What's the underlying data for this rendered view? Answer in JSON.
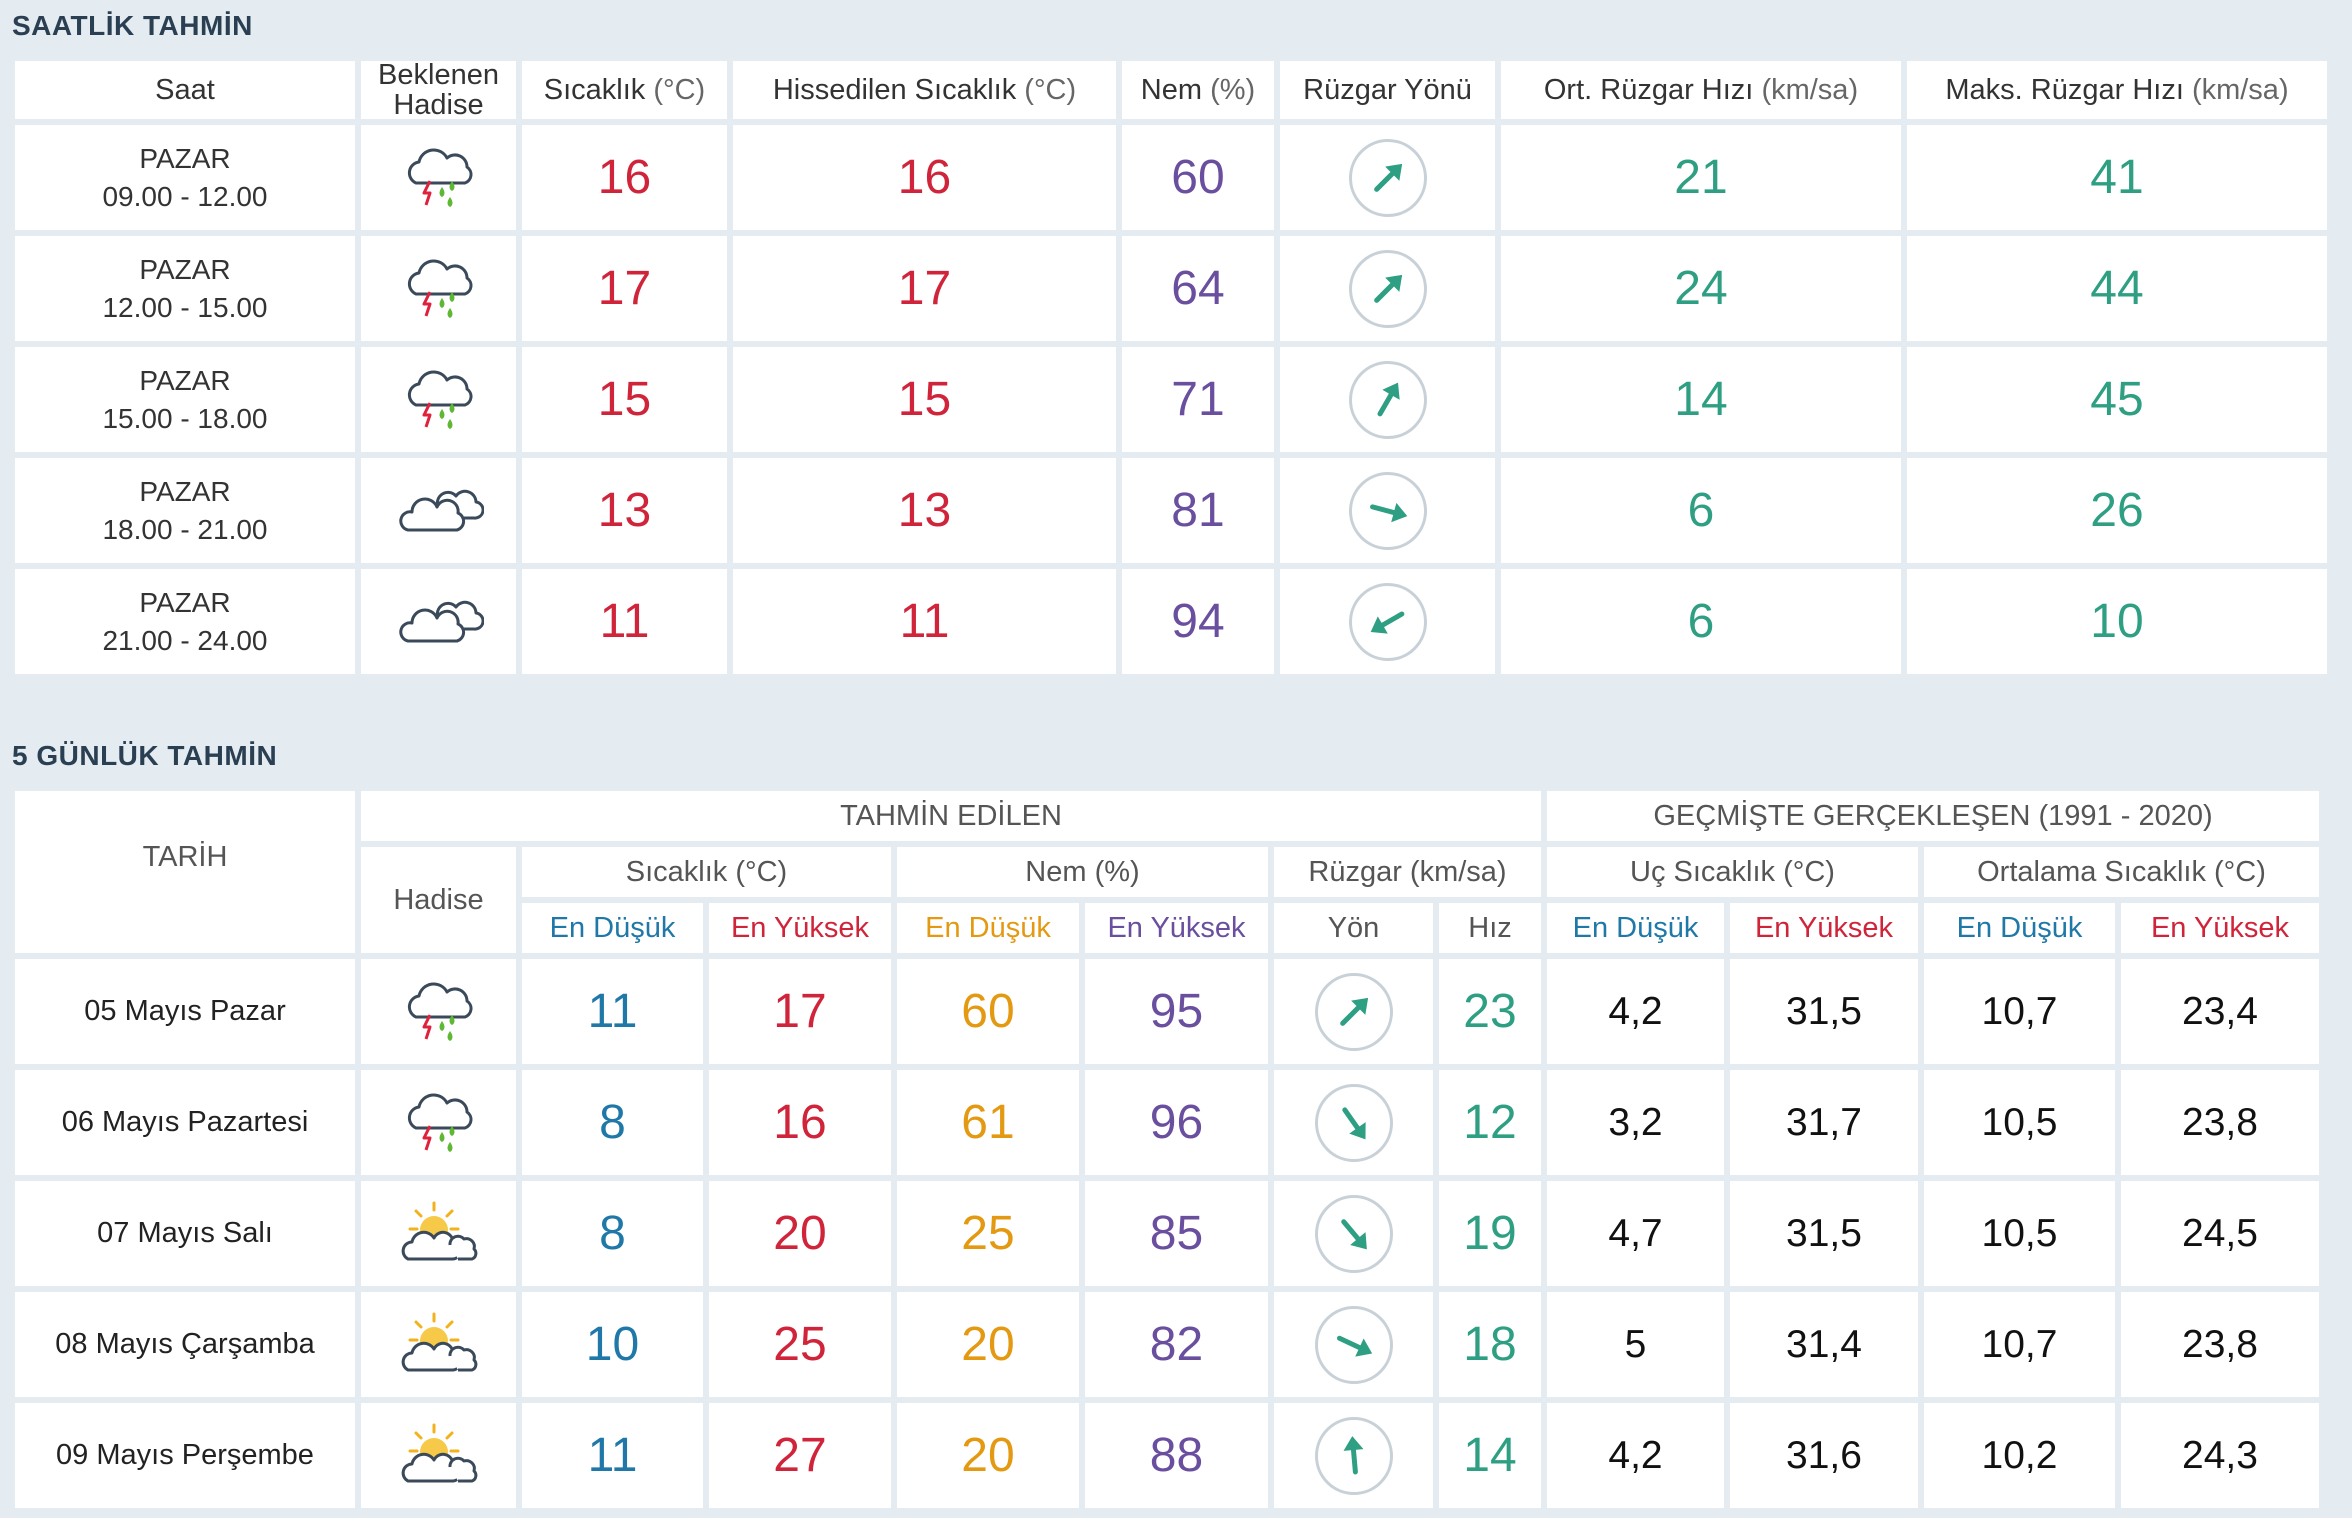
{
  "hourly": {
    "title": "SAATLİK TAHMİN",
    "headers": {
      "saat": "Saat",
      "hadise_1": "Beklenen",
      "hadise_2": "Hadise",
      "sicaklik": "Sıcaklık",
      "sicaklik_unit": "(°C)",
      "hissedilen": "Hissedilen Sıcaklık",
      "hissedilen_unit": "(°C)",
      "nem": "Nem",
      "nem_unit": "(%)",
      "ruzgar_yonu": "Rüzgar Yönü",
      "ort_ruzgar": "Ort. Rüzgar Hızı",
      "ort_ruzgar_unit": "(km/sa)",
      "maks_ruzgar": "Maks. Rüzgar Hızı",
      "maks_ruzgar_unit": "(km/sa)"
    },
    "rows": [
      {
        "day": "PAZAR",
        "time": "09.00 - 12.00",
        "icon": "thunderstorm-rain-icon",
        "temp": "16",
        "feels": "16",
        "humidity": "60",
        "wind_dir_deg": 45,
        "wind_avg": "21",
        "wind_max": "41"
      },
      {
        "day": "PAZAR",
        "time": "12.00 - 15.00",
        "icon": "thunderstorm-rain-icon",
        "temp": "17",
        "feels": "17",
        "humidity": "64",
        "wind_dir_deg": 45,
        "wind_avg": "24",
        "wind_max": "44"
      },
      {
        "day": "PAZAR",
        "time": "15.00 - 18.00",
        "icon": "thunderstorm-rain-icon",
        "temp": "15",
        "feels": "15",
        "humidity": "71",
        "wind_dir_deg": 30,
        "wind_avg": "14",
        "wind_max": "45"
      },
      {
        "day": "PAZAR",
        "time": "18.00 - 21.00",
        "icon": "cloudy-icon",
        "temp": "13",
        "feels": "13",
        "humidity": "81",
        "wind_dir_deg": 105,
        "wind_avg": "6",
        "wind_max": "26"
      },
      {
        "day": "PAZAR",
        "time": "21.00 - 24.00",
        "icon": "cloudy-icon",
        "temp": "11",
        "feels": "11",
        "humidity": "94",
        "wind_dir_deg": 240,
        "wind_avg": "6",
        "wind_max": "10"
      }
    ]
  },
  "daily": {
    "title": "5 GÜNLÜK TAHMİN",
    "headers": {
      "tarih": "TARİH",
      "tahmin_edilen": "TAHMİN EDİLEN",
      "gecmiste": "GEÇMİŞTE GERÇEKLEŞEN (1991 - 2020)",
      "hadise": "Hadise",
      "sicaklik": "Sıcaklık (°C)",
      "nem": "Nem (%)",
      "ruzgar": "Rüzgar (km/sa)",
      "uc_sicaklik": "Uç Sıcaklık (°C)",
      "ortalama_sicaklik": "Ortalama Sıcaklık (°C)",
      "en_dusuk": "En Düşük",
      "en_yuksek": "En Yüksek",
      "yon": "Yön",
      "hiz": "Hız"
    },
    "rows": [
      {
        "date": "05 Mayıs Pazar",
        "icon": "thunderstorm-rain-icon",
        "temp_min": "11",
        "temp_max": "17",
        "hum_min": "60",
        "hum_max": "95",
        "wind_dir_deg": 45,
        "wind_speed": "23",
        "ext_min": "4,2",
        "ext_max": "31,5",
        "avg_min": "10,7",
        "avg_max": "23,4"
      },
      {
        "date": "06 Mayıs Pazartesi",
        "icon": "thunderstorm-rain-icon",
        "temp_min": "8",
        "temp_max": "16",
        "hum_min": "61",
        "hum_max": "96",
        "wind_dir_deg": 145,
        "wind_speed": "12",
        "ext_min": "3,2",
        "ext_max": "31,7",
        "avg_min": "10,5",
        "avg_max": "23,8"
      },
      {
        "date": "07 Mayıs Salı",
        "icon": "partly-cloudy-icon",
        "temp_min": "8",
        "temp_max": "20",
        "hum_min": "25",
        "hum_max": "85",
        "wind_dir_deg": 140,
        "wind_speed": "19",
        "ext_min": "4,7",
        "ext_max": "31,5",
        "avg_min": "10,5",
        "avg_max": "24,5"
      },
      {
        "date": "08 Mayıs Çarşamba",
        "icon": "partly-cloudy-icon",
        "temp_min": "10",
        "temp_max": "25",
        "hum_min": "20",
        "hum_max": "82",
        "wind_dir_deg": 115,
        "wind_speed": "18",
        "ext_min": "5",
        "ext_max": "31,4",
        "avg_min": "10,7",
        "avg_max": "23,8"
      },
      {
        "date": "09 Mayıs Perşembe",
        "icon": "partly-cloudy-icon",
        "temp_min": "11",
        "temp_max": "27",
        "hum_min": "20",
        "hum_max": "88",
        "wind_dir_deg": 355,
        "wind_speed": "14",
        "ext_min": "4,2",
        "ext_max": "31,6",
        "avg_min": "10,2",
        "avg_max": "24,3"
      }
    ]
  },
  "colors": {
    "temp": "#d0243b",
    "humidity": "#6a4f9e",
    "wind": "#2e9f82",
    "min_temp": "#1f78a8",
    "min_humidity": "#e39a12"
  }
}
